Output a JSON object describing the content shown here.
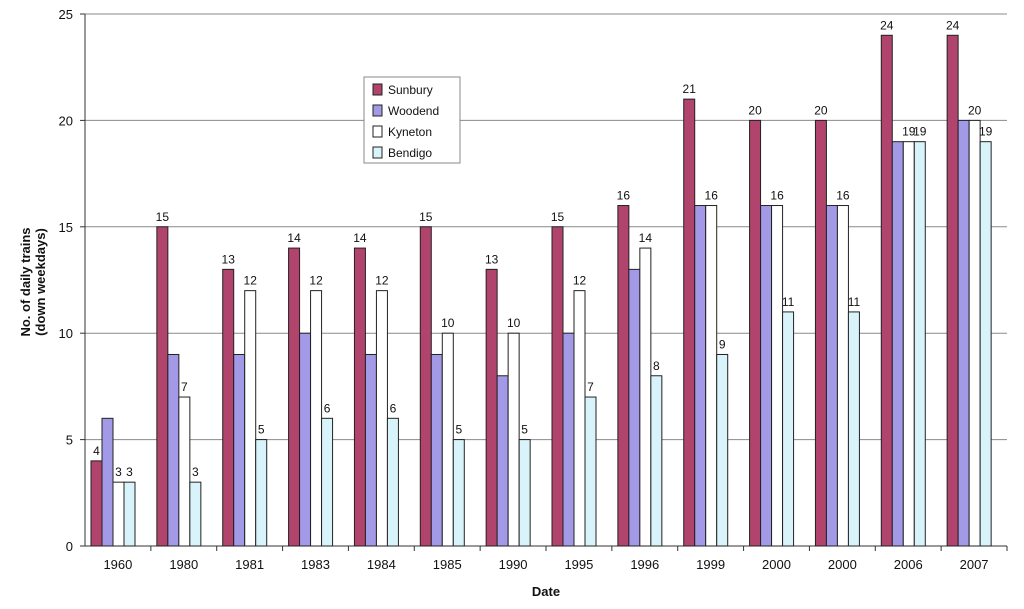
{
  "chart_data": {
    "type": "bar",
    "title": "",
    "xlabel": "Date",
    "ylabel_lines": [
      "No. of daily trains",
      "(down weekdays)"
    ],
    "ylim": [
      0,
      25
    ],
    "yticks": [
      0,
      5,
      10,
      15,
      20,
      25
    ],
    "grid": true,
    "legend_position": "upper-center",
    "categories": [
      "1960",
      "1980",
      "1981",
      "1983",
      "1984",
      "1985",
      "1990",
      "1995",
      "1996",
      "1999",
      "2000",
      "2000",
      "2006",
      "2007"
    ],
    "series": [
      {
        "name": "Sunbury",
        "color": "#b0446c",
        "values": [
          4,
          15,
          13,
          14,
          14,
          15,
          13,
          15,
          16,
          21,
          20,
          20,
          24,
          24
        ],
        "show_labels": true
      },
      {
        "name": "Woodend",
        "color": "#a29ae6",
        "values": [
          6,
          9,
          9,
          10,
          9,
          9,
          8,
          10,
          13,
          16,
          16,
          16,
          19,
          20
        ],
        "show_labels": false
      },
      {
        "name": "Kyneton",
        "color": "#ffffff",
        "values": [
          3,
          7,
          12,
          12,
          12,
          10,
          10,
          12,
          14,
          16,
          16,
          16,
          19,
          20
        ],
        "show_labels": true
      },
      {
        "name": "Bendigo",
        "color": "#d8f4fa",
        "values": [
          3,
          3,
          5,
          6,
          6,
          5,
          5,
          7,
          8,
          9,
          11,
          11,
          19,
          19
        ],
        "show_labels": true
      }
    ]
  }
}
